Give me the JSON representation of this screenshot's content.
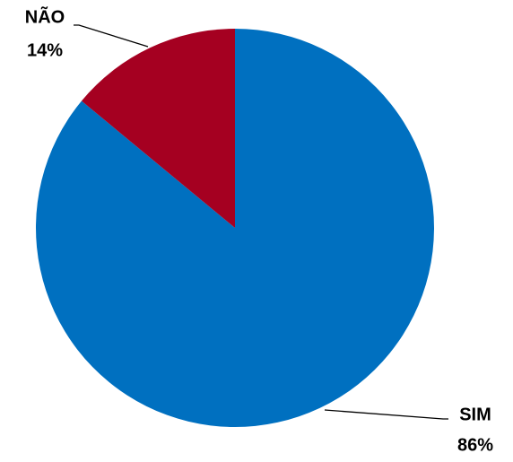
{
  "chart_data": {
    "type": "pie",
    "categories": [
      "SIM",
      "NÃO"
    ],
    "values": [
      86,
      14
    ],
    "value_labels": [
      "86%",
      "14%"
    ],
    "colors": [
      "#0070c0",
      "#a50021"
    ]
  }
}
